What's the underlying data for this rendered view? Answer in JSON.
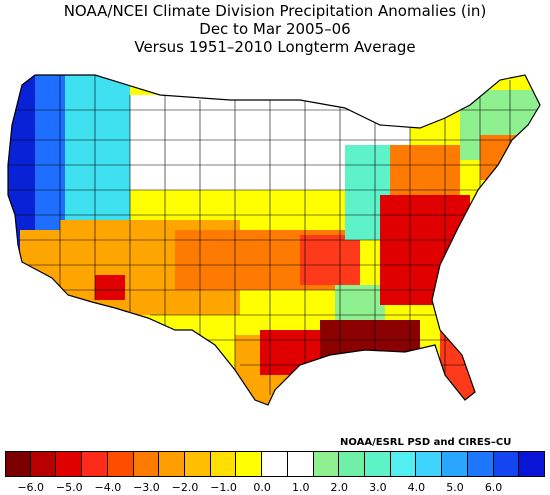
{
  "titles": {
    "line1": "NOAA/NCEI Climate Division Precipitation Anomalies (in)",
    "line2": "Dec to Mar 2005–06",
    "line3": "Versus 1951–2010 Longterm Average"
  },
  "credit": "NOAA/ESRL PSD and CIRES–CU",
  "legend": {
    "colors": [
      "#7a0000",
      "#b80000",
      "#e00000",
      "#ff2b1a",
      "#ff4d00",
      "#ff7a00",
      "#ff9e00",
      "#ffbf00",
      "#ffdf00",
      "#ffff00",
      "#ffffff",
      "#ffffff",
      "#8ef08e",
      "#6ff0a6",
      "#5ef2c8",
      "#52eef0",
      "#3fd4ff",
      "#2aa6ff",
      "#1e78ff",
      "#1446f0",
      "#0a14d6"
    ],
    "tick_labels": [
      "−6.0",
      "−5.0",
      "−4.0",
      "−3.0",
      "−2.0",
      "−1.0",
      "0.0",
      "1.0",
      "2.0",
      "3.0",
      "4.0",
      "5.0",
      "6.0"
    ]
  },
  "map_colors": {
    "dark_red": "#8b0000",
    "red": "#e00000",
    "red_orange": "#ff3a1a",
    "orange": "#ff7a00",
    "light_orange": "#ffa500",
    "amber": "#ffc000",
    "yellow": "#ffff00",
    "white": "#ffffff",
    "light_green": "#8ef08e",
    "green": "#55e0a0",
    "aqua": "#5ef2c8",
    "cyan": "#3fe0f0",
    "sky": "#3fb0ff",
    "blue": "#1e6fff",
    "dark_blue": "#0a22d6"
  }
}
